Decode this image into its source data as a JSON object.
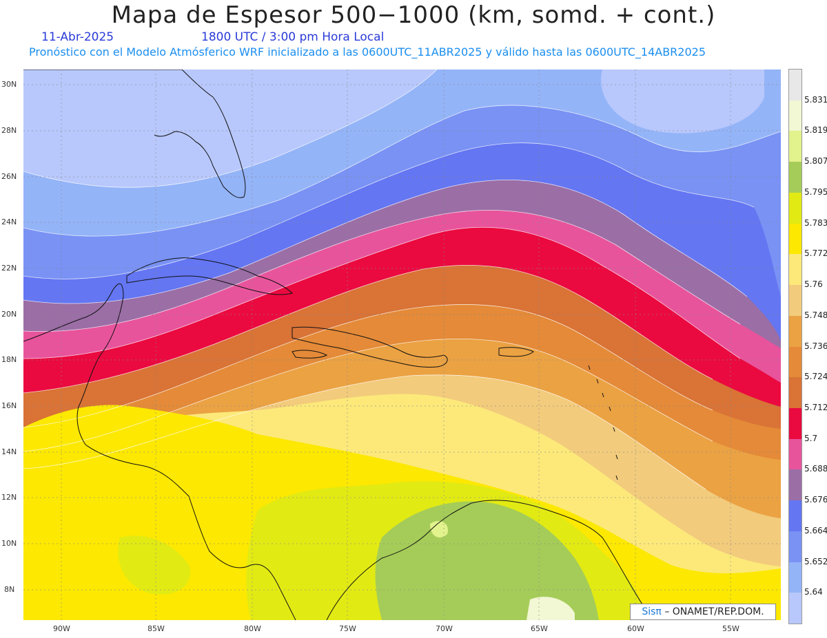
{
  "header": {
    "title": "Mapa de Espesor 500−1000 (km, somd. + cont.)",
    "date": "11-Abr-2025",
    "time": "1800 UTC / 3:00 pm Hora Local",
    "forecast": "Pronóstico con el Modelo Atmósferico WRF inicializado a las 0600UTC_11ABR2025 y válido hasta las  0600UTC_14ABR2025"
  },
  "axes": {
    "lat_labels": [
      "30N",
      "28N",
      "26N",
      "24N",
      "22N",
      "20N",
      "18N",
      "16N",
      "14N",
      "12N",
      "10N",
      "8N"
    ],
    "lon_labels": [
      "90W",
      "85W",
      "80W",
      "75W",
      "70W",
      "65W",
      "60W",
      "55W"
    ]
  },
  "colorbar": {
    "labels": [
      "5.831",
      "5.819",
      "5.807",
      "5.795",
      "5.783",
      "5.772",
      "5.76",
      "5.748",
      "5.736",
      "5.724",
      "5.712",
      "5.7",
      "5.688",
      "5.676",
      "5.664",
      "5.652",
      "5.64"
    ],
    "colors": [
      "#e8e8e8",
      "#f2f7d4",
      "#e2f28c",
      "#a5cc58",
      "#e2ea14",
      "#fce800",
      "#fce97a",
      "#f2cb7c",
      "#eba243",
      "#e48a38",
      "#d97336",
      "#ea0a40",
      "#e8549c",
      "#9b6ea6",
      "#6476f2",
      "#7992f4",
      "#94b4f8",
      "#b8c8fc"
    ]
  },
  "footer": {
    "sis": "Sisπ",
    "org": "– ONAMET/REP.DOM."
  }
}
